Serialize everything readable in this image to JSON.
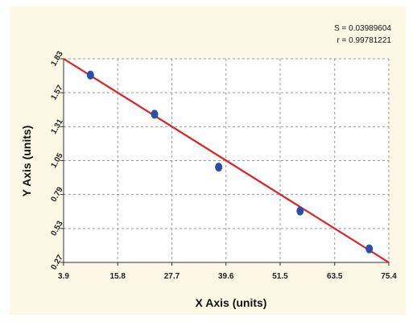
{
  "colors": {
    "panel_bg": "#fdf8e6",
    "plot_bg": "#ffffff",
    "grid": "#9a9a9a",
    "fit_line": "#e02020",
    "points": "#2b4fa8"
  },
  "stats": {
    "s_text": "S = 0.03989604",
    "r_text": "r = 0.99781221"
  },
  "chart_data": {
    "type": "scatter",
    "xlabel": "X Axis (units)",
    "ylabel": "Y Axis (units)",
    "xlim": [
      3.9,
      75.4
    ],
    "ylim": [
      0.27,
      1.83
    ],
    "x_ticks": [
      3.9,
      15.8,
      27.7,
      39.6,
      51.5,
      63.5,
      75.4
    ],
    "x_tick_labels": [
      "3.9",
      "15.8",
      "27.7",
      "39.6",
      "51.5",
      "63.5",
      "75.4"
    ],
    "y_ticks": [
      0.27,
      0.53,
      0.79,
      1.05,
      1.31,
      1.57,
      1.83
    ],
    "y_tick_labels": [
      "0.27",
      "0.53",
      "0.79",
      "1.05",
      "1.31",
      "1.57",
      "1.83"
    ],
    "grid": true,
    "points": {
      "x": [
        9.8,
        23.9,
        38.0,
        55.9,
        71.1
      ],
      "y": [
        1.705,
        1.405,
        1.0,
        0.664,
        0.374
      ]
    },
    "fit_line": {
      "x": [
        3.9,
        75.4
      ],
      "y": [
        1.83,
        0.27
      ]
    }
  }
}
